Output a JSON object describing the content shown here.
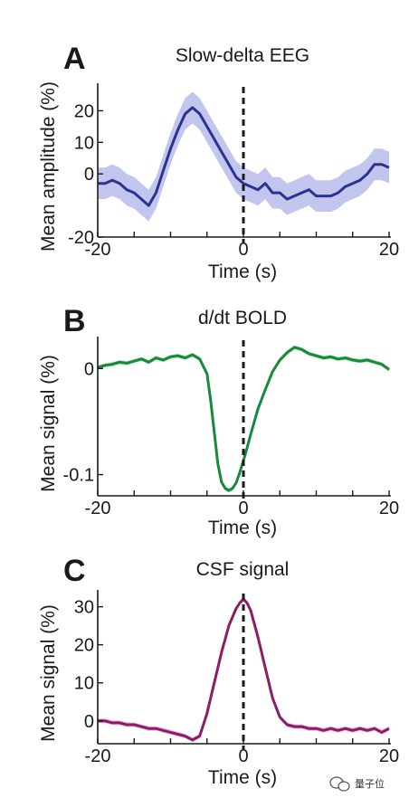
{
  "watermark": {
    "text": "量子位",
    "icon": "wechat-icon"
  },
  "chart_data": [
    {
      "panel": "A",
      "type": "line",
      "title": "Slow-delta EEG",
      "xlabel": "Time (s)",
      "ylabel": "Mean amplitude (%)",
      "xlim": [
        -20,
        20
      ],
      "ylim": [
        -20,
        27
      ],
      "xticks": [
        -20,
        0,
        20
      ],
      "yticks": [
        -20,
        0,
        10,
        20
      ],
      "xtick_labels": [
        "-20",
        "0",
        "20"
      ],
      "ytick_labels": [
        "-20",
        "0",
        "10",
        "20"
      ],
      "color": "#2b3391",
      "band_color": "#b3b6ea",
      "band_halfwidth": 5,
      "event_line": 0,
      "series": [
        {
          "x": [
            -20,
            -19,
            -18,
            -17,
            -16,
            -15,
            -14,
            -13,
            -12,
            -11,
            -10,
            -9,
            -8,
            -7,
            -6,
            -5,
            -4,
            -3,
            -2,
            -1,
            0,
            1,
            2,
            3,
            4,
            5,
            6,
            7,
            8,
            9,
            10,
            11,
            12,
            13,
            14,
            15,
            16,
            17,
            18,
            19,
            20
          ],
          "y": [
            -3,
            -3,
            -2,
            -3,
            -5,
            -6,
            -8,
            -10,
            -6,
            1,
            8,
            14,
            19,
            21,
            19,
            15,
            11,
            7,
            3,
            -1,
            -3,
            -4,
            -5,
            -3,
            -6,
            -6,
            -8,
            -7,
            -6,
            -5,
            -7,
            -7,
            -7,
            -6,
            -4,
            -3,
            -2,
            0,
            3,
            3,
            2
          ]
        }
      ]
    },
    {
      "panel": "B",
      "type": "line",
      "title": "d/dt BOLD",
      "xlabel": "Time (s)",
      "ylabel": "Mean signal (%)",
      "xlim": [
        -20,
        20
      ],
      "ylim": [
        -0.12,
        0.025
      ],
      "xticks": [
        -20,
        0,
        20
      ],
      "yticks": [
        -0.1,
        0
      ],
      "xtick_labels": [
        "-20",
        "0",
        "20"
      ],
      "ytick_labels": [
        "-0.1",
        "0"
      ],
      "color": "#178a3a",
      "band_color": "#a8dcb6",
      "band_halfwidth": 0.002,
      "event_line": 0,
      "series": [
        {
          "x": [
            -20,
            -19,
            -18,
            -17,
            -16,
            -15,
            -14,
            -13,
            -12,
            -11,
            -10,
            -9,
            -8,
            -7,
            -6,
            -5,
            -4.5,
            -4,
            -3.5,
            -3,
            -2.5,
            -2,
            -1.5,
            -1,
            -0.5,
            0,
            0.5,
            1,
            1.5,
            2,
            3,
            4,
            5,
            6,
            7,
            8,
            9,
            10,
            11,
            12,
            13,
            14,
            15,
            16,
            17,
            18,
            19,
            20
          ],
          "y": [
            0.001,
            0.003,
            0.004,
            0.006,
            0.005,
            0.007,
            0.009,
            0.006,
            0.01,
            0.008,
            0.011,
            0.012,
            0.01,
            0.013,
            0.009,
            -0.005,
            -0.03,
            -0.06,
            -0.09,
            -0.107,
            -0.113,
            -0.115,
            -0.113,
            -0.108,
            -0.098,
            -0.087,
            -0.075,
            -0.062,
            -0.05,
            -0.038,
            -0.02,
            -0.003,
            0.008,
            0.015,
            0.02,
            0.018,
            0.014,
            0.012,
            0.01,
            0.011,
            0.009,
            0.01,
            0.008,
            0.007,
            0.008,
            0.006,
            0.004,
            -0.001
          ]
        }
      ]
    },
    {
      "panel": "C",
      "type": "line",
      "title": "CSF signal",
      "xlabel": "Time (s)",
      "ylabel": "Mean signal (%)",
      "xlim": [
        -20,
        20
      ],
      "ylim": [
        -6,
        33
      ],
      "xticks": [
        -20,
        0,
        20
      ],
      "yticks": [
        0,
        10,
        20,
        30
      ],
      "xtick_labels": [
        "-20",
        "0",
        "20"
      ],
      "ytick_labels": [
        "0",
        "10",
        "20",
        "30"
      ],
      "color": "#8a1c6a",
      "band_color": "#e5a9d6",
      "band_halfwidth": 0.6,
      "event_line": 0,
      "series": [
        {
          "x": [
            -20,
            -19,
            -18,
            -17,
            -16,
            -15,
            -14,
            -13,
            -12,
            -11,
            -10,
            -9,
            -8,
            -7,
            -6,
            -5,
            -4,
            -3,
            -2,
            -1,
            -0.5,
            0,
            0.5,
            1,
            2,
            3,
            4,
            5,
            6,
            7,
            8,
            9,
            10,
            11,
            12,
            13,
            14,
            15,
            16,
            17,
            18,
            19,
            20
          ],
          "y": [
            0,
            0,
            -0.5,
            -0.5,
            -1,
            -1,
            -1.5,
            -2,
            -2,
            -2.5,
            -3,
            -3.5,
            -4,
            -5,
            -4,
            2,
            10,
            18,
            25,
            29.5,
            31,
            32,
            31,
            29,
            22,
            14,
            6,
            1,
            -1,
            -1.5,
            -1.5,
            -2,
            -2,
            -2.5,
            -2,
            -2.5,
            -2,
            -2.5,
            -2,
            -2.5,
            -2,
            -3,
            -2
          ]
        }
      ]
    }
  ]
}
